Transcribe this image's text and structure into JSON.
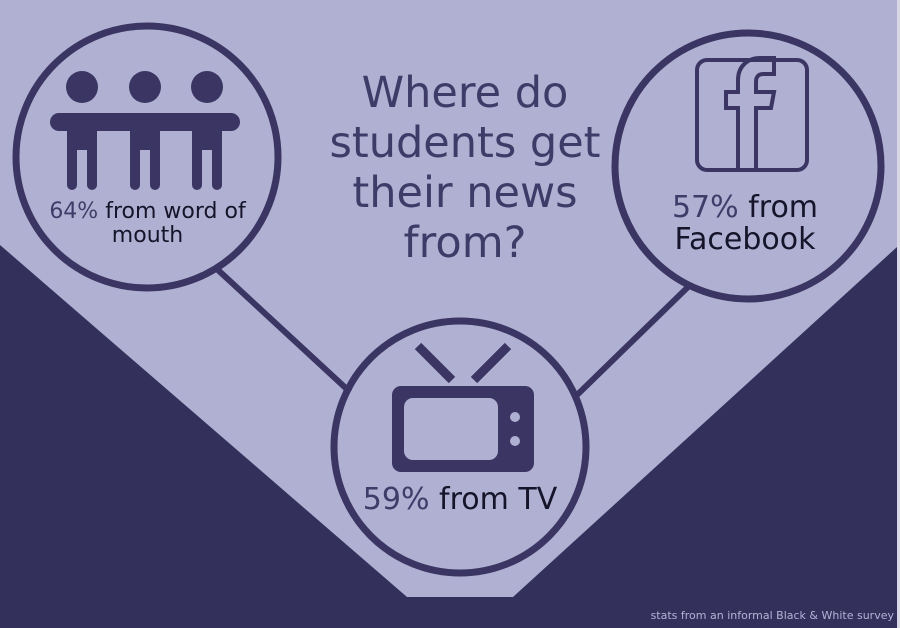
{
  "colors": {
    "light": "#b0b0d2",
    "dark": "#34305c",
    "ink": "#3a3563"
  },
  "title": "Where do students get their news from?",
  "items": [
    {
      "icon": "people-icon",
      "percent": "64%",
      "label": "from word of mouth"
    },
    {
      "icon": "tv-icon",
      "percent": "59%",
      "label": "from TV"
    },
    {
      "icon": "facebook-icon",
      "percent": "57%",
      "label": "from Facebook"
    }
  ],
  "caption": "stats from an informal Black & White survey"
}
